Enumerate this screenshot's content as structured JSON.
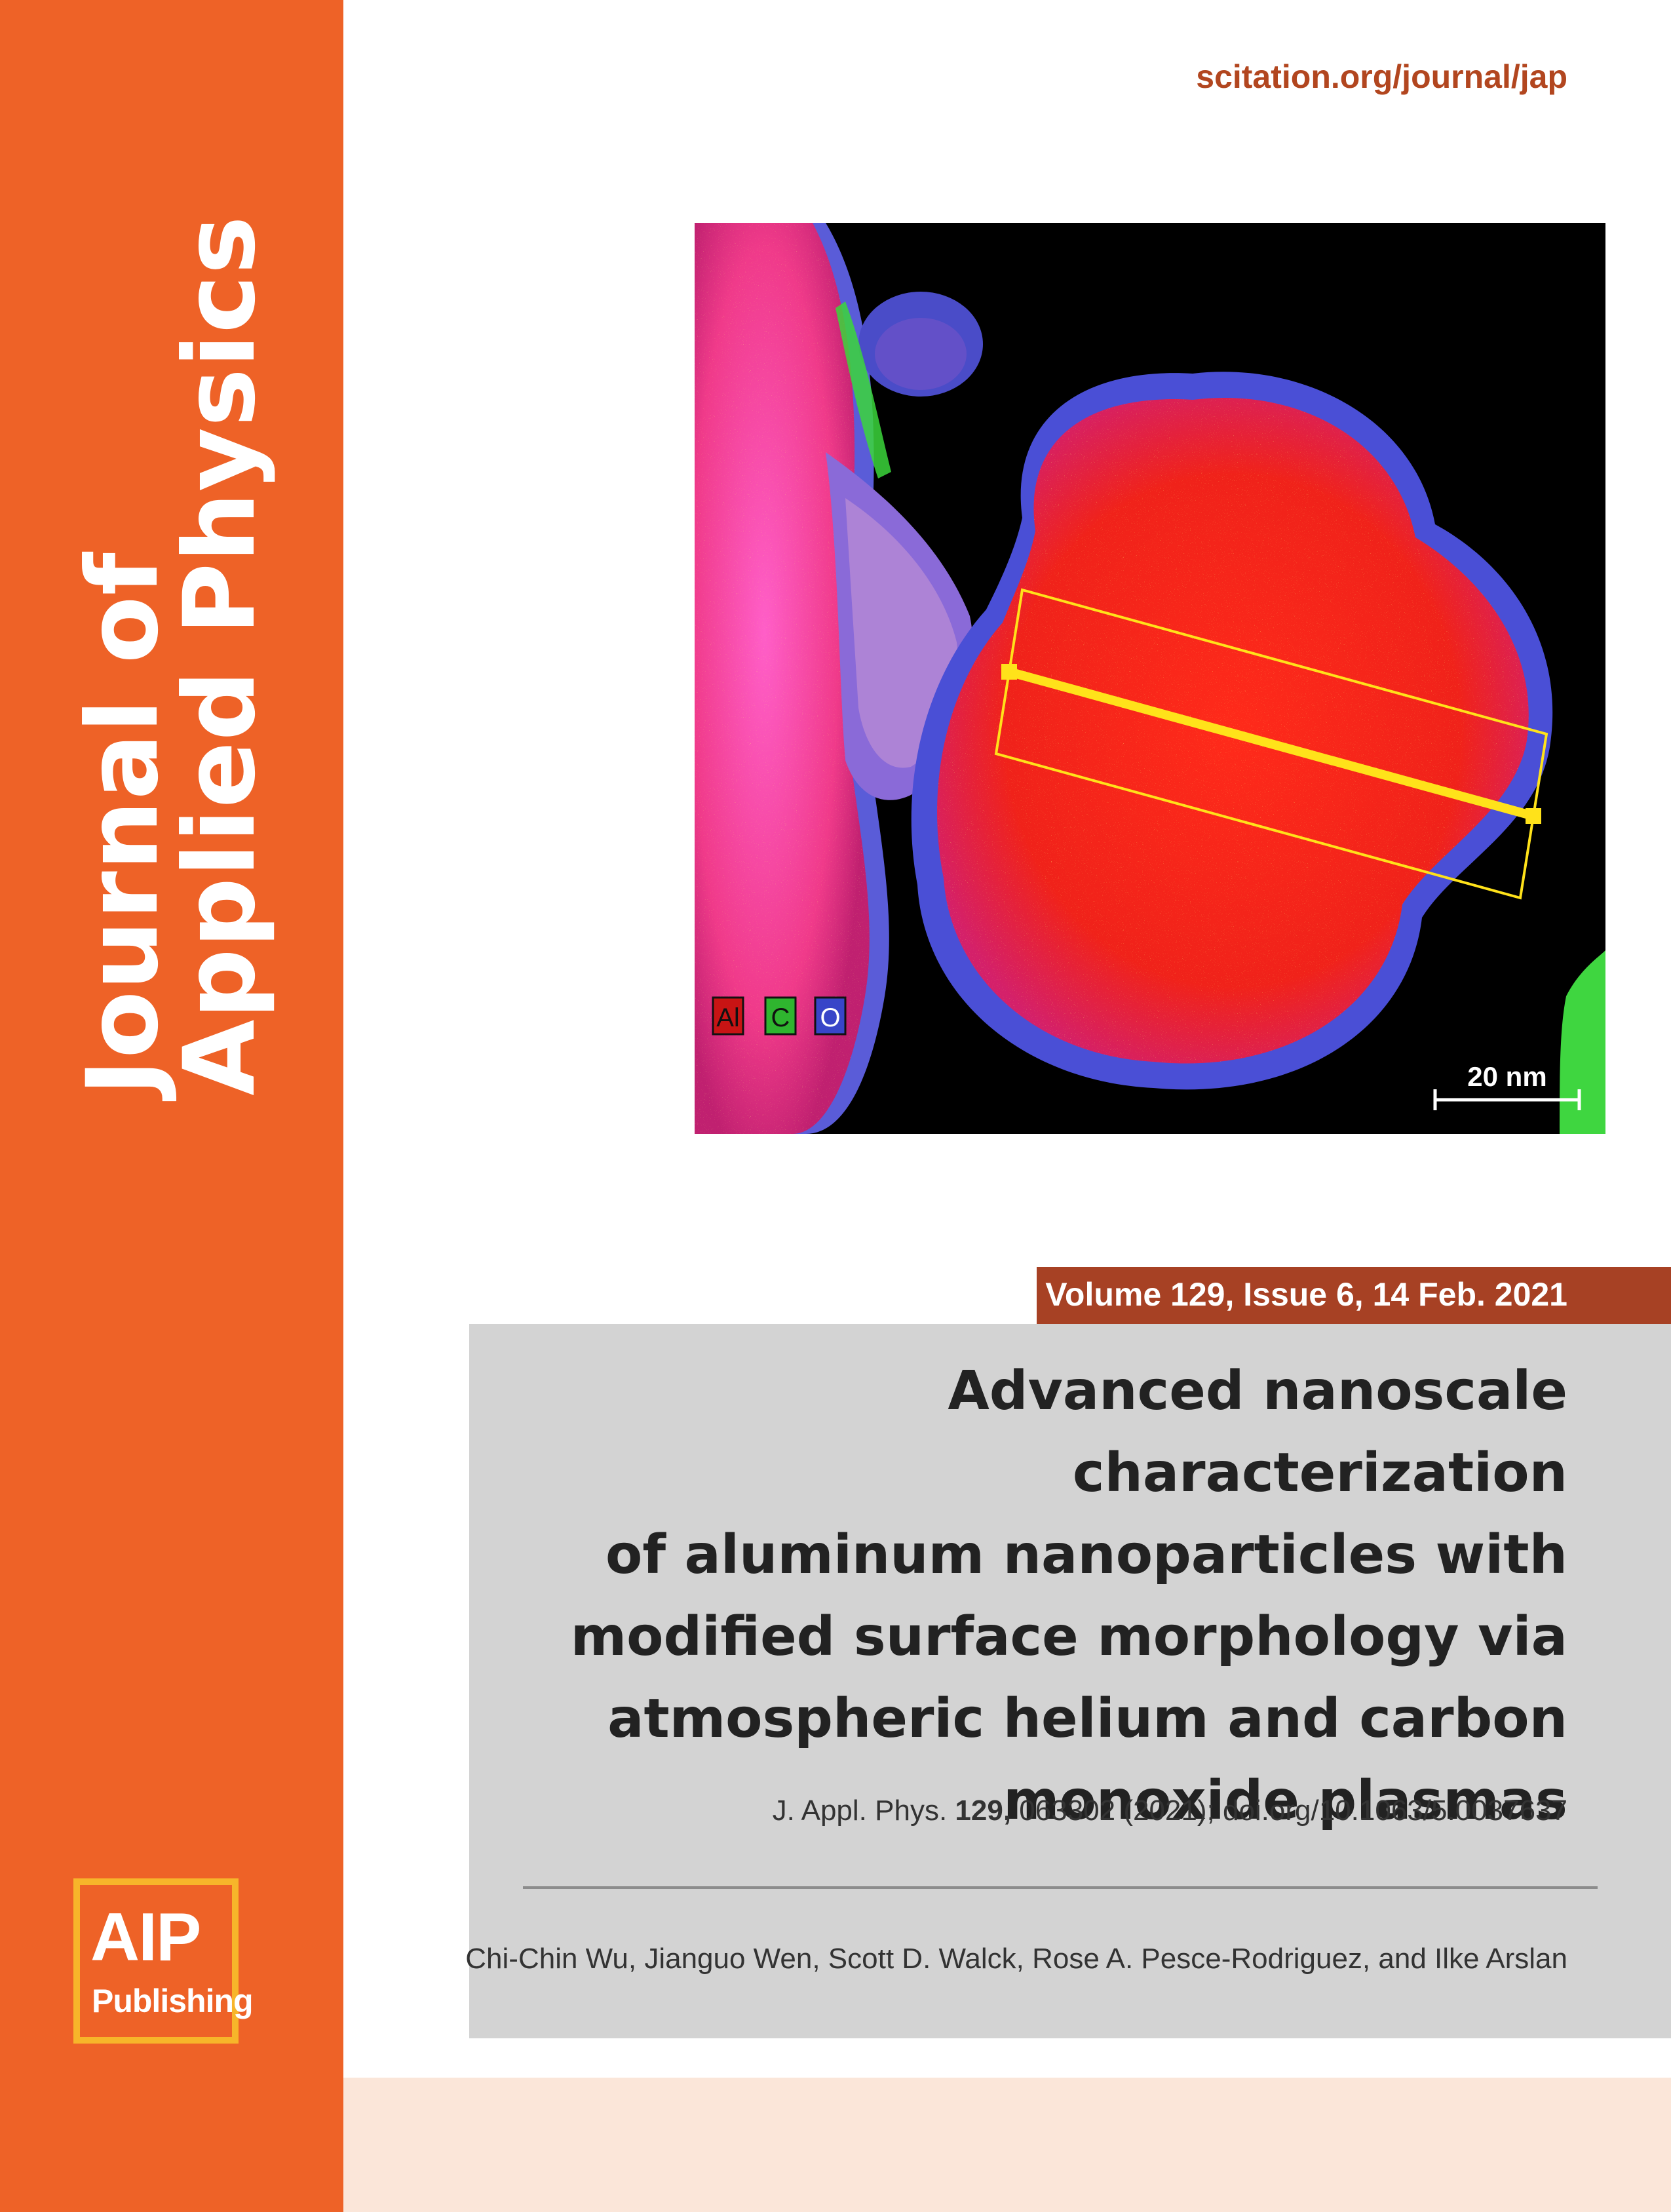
{
  "colors": {
    "sidebar": "#ee6227",
    "logo_border": "#f7b52a",
    "url_text": "#b2461f",
    "volume_bar": "#a74124",
    "panel": "#d3d3d3",
    "bottom_band": "#fbe6d9"
  },
  "journal": {
    "title_line1": "Journal of",
    "title_line2": "Applied Physics",
    "url": "scitation.org/journal/jap"
  },
  "publisher": {
    "logo_main": "AIP",
    "logo_sub": "Publishing"
  },
  "cover_image": {
    "legend": [
      "Al",
      "C",
      "O"
    ],
    "scale_bar": "20 nm"
  },
  "issue": {
    "volume_text": "Volume 129, Issue 6, 14 Feb. 2021"
  },
  "article": {
    "title_lines": [
      "Advanced nanoscale characterization",
      "of aluminum nanoparticles with",
      "modified surface morphology via",
      "atmospheric helium and carbon",
      "monoxide plasmas"
    ],
    "citation_prefix": "J. Appl. Phys.",
    "citation_volume": "129,",
    "citation_rest": "063302 (2021); doi.org/10.1063/5.0037637",
    "authors": "Chi-Chin Wu, Jianguo Wen, Scott D. Walck, Rose A. Pesce-Rodriguez, and Ilke Arslan"
  }
}
